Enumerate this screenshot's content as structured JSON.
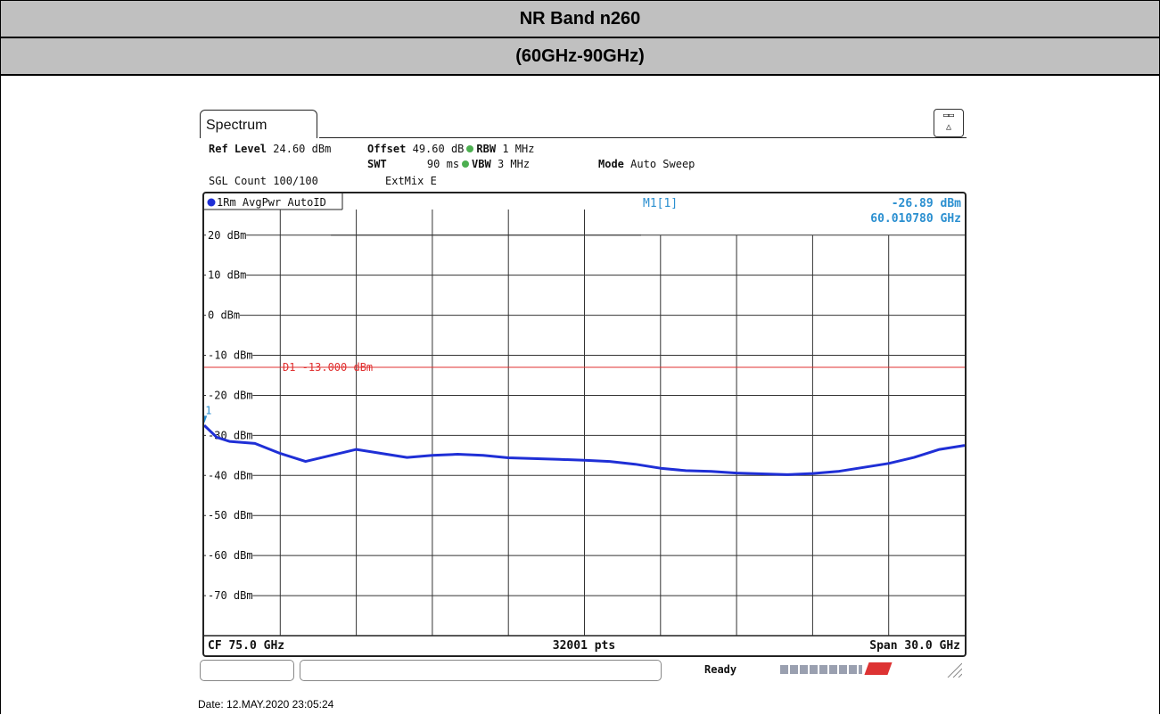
{
  "header": {
    "band": "NR Band n260",
    "range": "(60GHz-90GHz)"
  },
  "analyzer": {
    "tab_label": "Spectrum",
    "ref_level_label": "Ref Level",
    "ref_level_value": "24.60 dBm",
    "offset_label": "Offset",
    "offset_value": "49.60 dB",
    "rbw_label": "RBW",
    "rbw_value": "1 MHz",
    "swt_label": "SWT",
    "swt_value": "90 ms",
    "vbw_label": "VBW",
    "vbw_value": "3 MHz",
    "mode_label": "Mode",
    "mode_value": "Auto Sweep",
    "sgl_count": "SGL Count 100/100",
    "extmix": "ExtMix E",
    "trace_label": "1Rm AvgPwr AutoID",
    "marker_name": "M1[1]",
    "marker_level": "-26.89 dBm",
    "marker_freq": "60.010780 GHz",
    "marker_flag": "1",
    "display_line_label": "D1  -13.000 dBm",
    "cf_label": "CF 75.0 GHz",
    "points_label": "32001 pts",
    "span_label": "Span 30.0 GHz",
    "status_ready": "Ready"
  },
  "chart_data": {
    "type": "line",
    "x_unit": "GHz",
    "xlim": [
      60,
      90
    ],
    "ylim": [
      -80,
      26.4
    ],
    "y_ticks": [
      20,
      10,
      0,
      -10,
      -20,
      -30,
      -40,
      -50,
      -60,
      -70
    ],
    "y_tick_labels": [
      "20 dBm",
      "10 dBm",
      "0 dBm",
      "-10 dBm",
      "-20 dBm",
      "-30 dBm",
      "-40 dBm",
      "-50 dBm",
      "-60 dBm",
      "-70 dBm"
    ],
    "display_line": -13.0,
    "series": [
      {
        "x": [
          60,
          60.5,
          61,
          62,
          63,
          64,
          65,
          66,
          67,
          68,
          69,
          70,
          71,
          72,
          73,
          74,
          75,
          76,
          77,
          78,
          79,
          80,
          81,
          82,
          83,
          84,
          85,
          86,
          87,
          88,
          89,
          90
        ],
        "y": [
          -27.5,
          -30.5,
          -31.5,
          -32,
          -34.5,
          -36.5,
          -35,
          -33.5,
          -34.5,
          -35.5,
          -35,
          -34.7,
          -35,
          -35.6,
          -35.8,
          -36,
          -36.2,
          -36.5,
          -37.2,
          -38.2,
          -38.8,
          -39,
          -39.4,
          -39.6,
          -39.8,
          -39.5,
          -39,
          -38,
          -37,
          -35.5,
          -33.5,
          -32.5
        ]
      }
    ],
    "marker": {
      "x": 60.01078,
      "y": -26.89
    },
    "trace_color": "#1f2fd6",
    "display_line_color": "#e03030"
  }
}
